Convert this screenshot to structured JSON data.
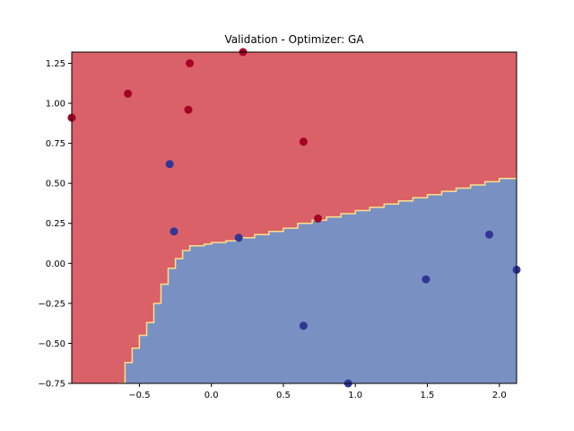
{
  "chart_data": {
    "type": "scatter",
    "title": "Validation - Optimizer: GA",
    "xlabel": "",
    "ylabel": "",
    "xlim": [
      -0.97,
      2.12
    ],
    "ylim": [
      -0.75,
      1.32
    ],
    "xticks": [
      -0.5,
      0.0,
      0.5,
      1.0,
      1.5,
      2.0
    ],
    "xtick_labels": [
      "−0.5",
      "0.0",
      "0.5",
      "1.0",
      "1.5",
      "2.0"
    ],
    "yticks": [
      -0.75,
      -0.5,
      -0.25,
      0.0,
      0.25,
      0.5,
      0.75,
      1.0,
      1.25
    ],
    "ytick_labels": [
      "−0.75",
      "−0.50",
      "−0.25",
      "0.00",
      "0.25",
      "0.50",
      "0.75",
      "1.00",
      "1.25"
    ],
    "grid": false,
    "colors": {
      "class0_region": "#d96167",
      "class1_region": "#7990c2",
      "class0_point": "#a50026",
      "class1_point": "#313695",
      "boundary": "#fce08a"
    },
    "decision_boundary": [
      [
        -0.65,
        -0.75
      ],
      [
        -0.6,
        -0.62
      ],
      [
        -0.55,
        -0.53
      ],
      [
        -0.5,
        -0.45
      ],
      [
        -0.45,
        -0.37
      ],
      [
        -0.4,
        -0.25
      ],
      [
        -0.35,
        -0.13
      ],
      [
        -0.3,
        -0.03
      ],
      [
        -0.25,
        0.03
      ],
      [
        -0.2,
        0.08
      ],
      [
        -0.15,
        0.11
      ],
      [
        -0.1,
        0.11
      ],
      [
        -0.05,
        0.12
      ],
      [
        0.0,
        0.13
      ],
      [
        0.1,
        0.14
      ],
      [
        0.2,
        0.16
      ],
      [
        0.3,
        0.18
      ],
      [
        0.4,
        0.2
      ],
      [
        0.5,
        0.22
      ],
      [
        0.6,
        0.25
      ],
      [
        0.7,
        0.27
      ],
      [
        0.8,
        0.29
      ],
      [
        0.9,
        0.31
      ],
      [
        1.0,
        0.33
      ],
      [
        1.1,
        0.35
      ],
      [
        1.2,
        0.37
      ],
      [
        1.3,
        0.39
      ],
      [
        1.4,
        0.41
      ],
      [
        1.5,
        0.43
      ],
      [
        1.6,
        0.45
      ],
      [
        1.7,
        0.47
      ],
      [
        1.8,
        0.49
      ],
      [
        1.9,
        0.51
      ],
      [
        2.0,
        0.53
      ],
      [
        2.12,
        0.57
      ]
    ],
    "series": [
      {
        "class": 0,
        "points": [
          [
            -0.97,
            0.91
          ],
          [
            -0.58,
            1.06
          ],
          [
            -0.15,
            1.25
          ],
          [
            0.22,
            1.32
          ],
          [
            -0.16,
            0.96
          ],
          [
            0.64,
            0.76
          ],
          [
            0.74,
            0.28
          ]
        ]
      },
      {
        "class": 1,
        "points": [
          [
            -0.29,
            0.62
          ],
          [
            -0.26,
            0.2
          ],
          [
            0.19,
            0.16
          ],
          [
            0.64,
            -0.39
          ],
          [
            0.95,
            -0.75
          ],
          [
            1.49,
            -0.1
          ],
          [
            1.93,
            0.18
          ],
          [
            2.12,
            -0.04
          ]
        ]
      }
    ]
  }
}
